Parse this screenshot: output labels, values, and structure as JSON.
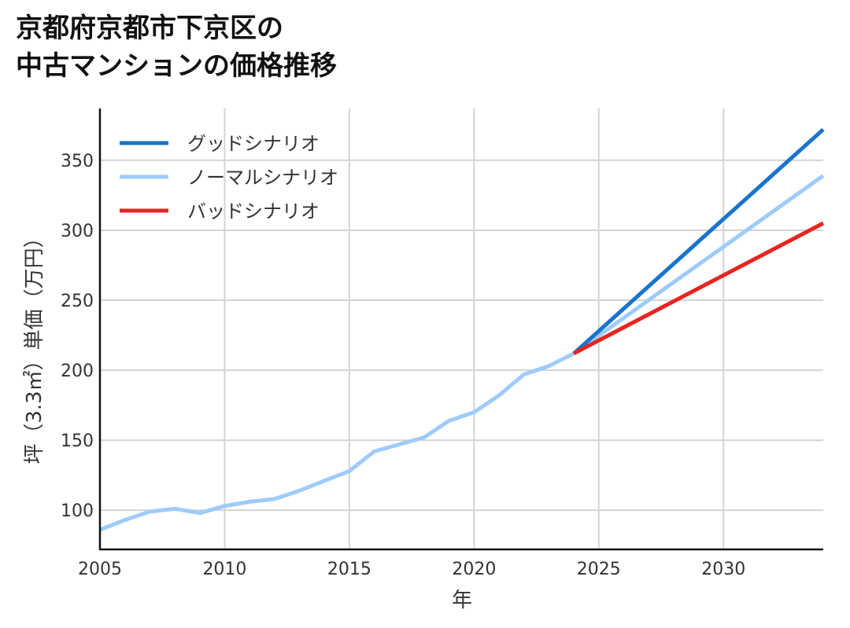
{
  "chart_data": {
    "type": "line",
    "title_lines": [
      "京都府京都市下京区の",
      "中古マンションの価格推移"
    ],
    "xlabel": "年",
    "ylabel": "坪（3.3㎡）単価（万円）",
    "xlim": [
      2005,
      2034
    ],
    "ylim": [
      72,
      387
    ],
    "x_ticks": [
      2005,
      2010,
      2015,
      2020,
      2025,
      2030
    ],
    "y_ticks": [
      100,
      150,
      200,
      250,
      300,
      350
    ],
    "grid": true,
    "legend_position": "top-left",
    "series": [
      {
        "name": "グッドシナリオ",
        "color": "#1874cd",
        "points": [
          [
            2024,
            212
          ],
          [
            2034,
            372
          ]
        ]
      },
      {
        "name": "ノーマルシナリオ",
        "color": "#9ecbfa",
        "points": [
          [
            2005,
            86
          ],
          [
            2006,
            93
          ],
          [
            2007,
            99
          ],
          [
            2008,
            101
          ],
          [
            2009,
            98
          ],
          [
            2010,
            103
          ],
          [
            2011,
            106
          ],
          [
            2012,
            108
          ],
          [
            2013,
            114
          ],
          [
            2014,
            121
          ],
          [
            2015,
            128
          ],
          [
            2016,
            142
          ],
          [
            2017,
            147
          ],
          [
            2018,
            152
          ],
          [
            2019,
            164
          ],
          [
            2020,
            170
          ],
          [
            2021,
            182
          ],
          [
            2022,
            197
          ],
          [
            2023,
            203
          ],
          [
            2024,
            212
          ],
          [
            2034,
            339
          ]
        ]
      },
      {
        "name": "バッドシナリオ",
        "color": "#e8241f",
        "points": [
          [
            2024,
            212
          ],
          [
            2034,
            305
          ]
        ]
      }
    ]
  }
}
